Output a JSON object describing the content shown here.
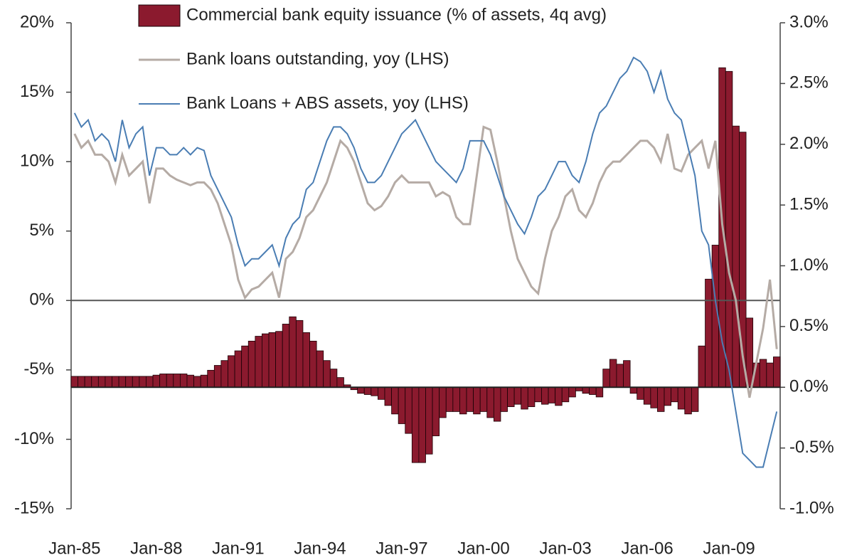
{
  "chart_data": {
    "type": "bar-line",
    "categories": [
      "Jan-85",
      null,
      null,
      null,
      null,
      null,
      null,
      null,
      null,
      null,
      null,
      null,
      "Jan-88",
      null,
      null,
      null,
      null,
      null,
      null,
      null,
      null,
      null,
      null,
      null,
      "Jan-91",
      null,
      null,
      null,
      null,
      null,
      null,
      null,
      null,
      null,
      null,
      null,
      "Jan-94",
      null,
      null,
      null,
      null,
      null,
      null,
      null,
      null,
      null,
      null,
      null,
      "Jan-97",
      null,
      null,
      null,
      null,
      null,
      null,
      null,
      null,
      null,
      null,
      null,
      "Jan-00",
      null,
      null,
      null,
      null,
      null,
      null,
      null,
      null,
      null,
      null,
      null,
      "Jan-03",
      null,
      null,
      null,
      null,
      null,
      null,
      null,
      null,
      null,
      null,
      null,
      "Jan-06",
      null,
      null,
      null,
      null,
      null,
      null,
      null,
      null,
      null,
      null,
      null,
      "Jan-09",
      null,
      null,
      null,
      null,
      null,
      null,
      null
    ],
    "series": [
      {
        "name": "Commercial bank equity issuance (% of assets, 4q avg)",
        "type": "bar",
        "axis": "y2",
        "color": "#8b1a2e",
        "values": [
          0.09,
          0.09,
          0.09,
          0.09,
          0.09,
          0.09,
          0.09,
          0.09,
          0.09,
          0.09,
          0.09,
          0.09,
          0.1,
          0.11,
          0.11,
          0.11,
          0.11,
          0.1,
          0.09,
          0.1,
          0.14,
          0.18,
          0.22,
          0.26,
          0.3,
          0.34,
          0.38,
          0.42,
          0.44,
          0.45,
          0.46,
          0.52,
          0.58,
          0.55,
          0.45,
          0.38,
          0.3,
          0.22,
          0.15,
          0.08,
          0.02,
          -0.02,
          -0.05,
          -0.06,
          -0.07,
          -0.1,
          -0.15,
          -0.22,
          -0.3,
          -0.38,
          -0.62,
          -0.62,
          -0.55,
          -0.4,
          -0.25,
          -0.2,
          -0.2,
          -0.22,
          -0.2,
          -0.22,
          -0.2,
          -0.25,
          -0.28,
          -0.2,
          -0.16,
          -0.14,
          -0.18,
          -0.16,
          -0.12,
          -0.14,
          -0.13,
          -0.15,
          -0.12,
          -0.08,
          -0.03,
          -0.05,
          -0.06,
          -0.08,
          0.15,
          0.23,
          0.19,
          0.22,
          -0.05,
          -0.1,
          -0.14,
          -0.17,
          -0.2,
          -0.15,
          -0.12,
          -0.18,
          -0.22,
          -0.2,
          0.34,
          0.89,
          1.17,
          2.63,
          2.6,
          2.15,
          2.1,
          0.57,
          0.2,
          0.23,
          0.2,
          0.25
        ]
      },
      {
        "name": "Bank loans outstanding, yoy (LHS)",
        "type": "line",
        "axis": "y",
        "color": "#b5aba5",
        "values": [
          12,
          11,
          11.5,
          10.5,
          10.5,
          10,
          8.5,
          10.5,
          9,
          9.5,
          10,
          7,
          9.5,
          9.5,
          9,
          8.7,
          8.5,
          8.3,
          8.5,
          8.5,
          8,
          7,
          5.5,
          4,
          1.5,
          0.2,
          0.8,
          1,
          1.5,
          2,
          0.2,
          3,
          3.5,
          4.5,
          6,
          6.5,
          7.5,
          8.5,
          10,
          11.5,
          11,
          10,
          8.5,
          7,
          6.5,
          6.8,
          7.5,
          8.5,
          9,
          8.5,
          8.5,
          8.5,
          8.5,
          7.5,
          7.8,
          7.5,
          6,
          5.5,
          5.5,
          9,
          12.5,
          12.3,
          10,
          7.5,
          5,
          3,
          2,
          1,
          0.5,
          3,
          5,
          6,
          7.5,
          8,
          6.5,
          6,
          7,
          8.5,
          9.5,
          10,
          10,
          10.5,
          11,
          11.5,
          11.5,
          11,
          10,
          12,
          9.5,
          9.3,
          10.5,
          11,
          11.5,
          9.5,
          11.5,
          5.5,
          2,
          0,
          -4,
          -7,
          -4.5,
          -2,
          1.5,
          -3.5
        ]
      },
      {
        "name": "Bank Loans + ABS assets, yoy (LHS)",
        "type": "line",
        "axis": "y",
        "color": "#4a7db3",
        "values": [
          13.5,
          12.5,
          13,
          11.5,
          12,
          11.5,
          10,
          13,
          11,
          12,
          12.5,
          9,
          11,
          11,
          10.5,
          10.5,
          11,
          10.5,
          11,
          10.8,
          9,
          8,
          7,
          6,
          4,
          2.5,
          3,
          3,
          3.5,
          4,
          2.5,
          4.5,
          5.5,
          6,
          8,
          8.5,
          10,
          11.5,
          12.5,
          12.5,
          12,
          11,
          9.5,
          8.5,
          8.5,
          9,
          10,
          11,
          12,
          12.5,
          13,
          12,
          11,
          10,
          9.5,
          9,
          8.5,
          9.5,
          11.5,
          11.5,
          11.5,
          10.5,
          9,
          7.5,
          6.5,
          5.5,
          4.8,
          6,
          7.5,
          8,
          9,
          10,
          10,
          9,
          8.5,
          10,
          12,
          13.5,
          14,
          15,
          16,
          16.5,
          17.5,
          17.2,
          16.5,
          15,
          16.5,
          14.5,
          13.5,
          13,
          11,
          9,
          5,
          4,
          0,
          -3,
          -5,
          -8,
          -11,
          -11.5,
          -12,
          -12,
          -10,
          -8
        ]
      }
    ],
    "ylim": [
      -15,
      20
    ],
    "yticks": [
      {
        "value": -15,
        "label": "-15%"
      },
      {
        "value": -10,
        "label": "-10%"
      },
      {
        "value": -5,
        "label": "-5%"
      },
      {
        "value": 0,
        "label": "0%"
      },
      {
        "value": 5,
        "label": "5%"
      },
      {
        "value": 10,
        "label": "10%"
      },
      {
        "value": 15,
        "label": "15%"
      },
      {
        "value": 20,
        "label": "20%"
      }
    ],
    "y2lim": [
      -1.0,
      3.0
    ],
    "y2ticks": [
      {
        "value": -1.0,
        "label": "-1.0%"
      },
      {
        "value": -0.5,
        "label": "-0.5%"
      },
      {
        "value": 0.0,
        "label": "0.0%"
      },
      {
        "value": 0.5,
        "label": "0.5%"
      },
      {
        "value": 1.0,
        "label": "1.0%"
      },
      {
        "value": 1.5,
        "label": "1.5%"
      },
      {
        "value": 2.0,
        "label": "2.0%"
      },
      {
        "value": 2.5,
        "label": "2.5%"
      },
      {
        "value": 3.0,
        "label": "3.0%"
      }
    ],
    "legend": "top"
  }
}
